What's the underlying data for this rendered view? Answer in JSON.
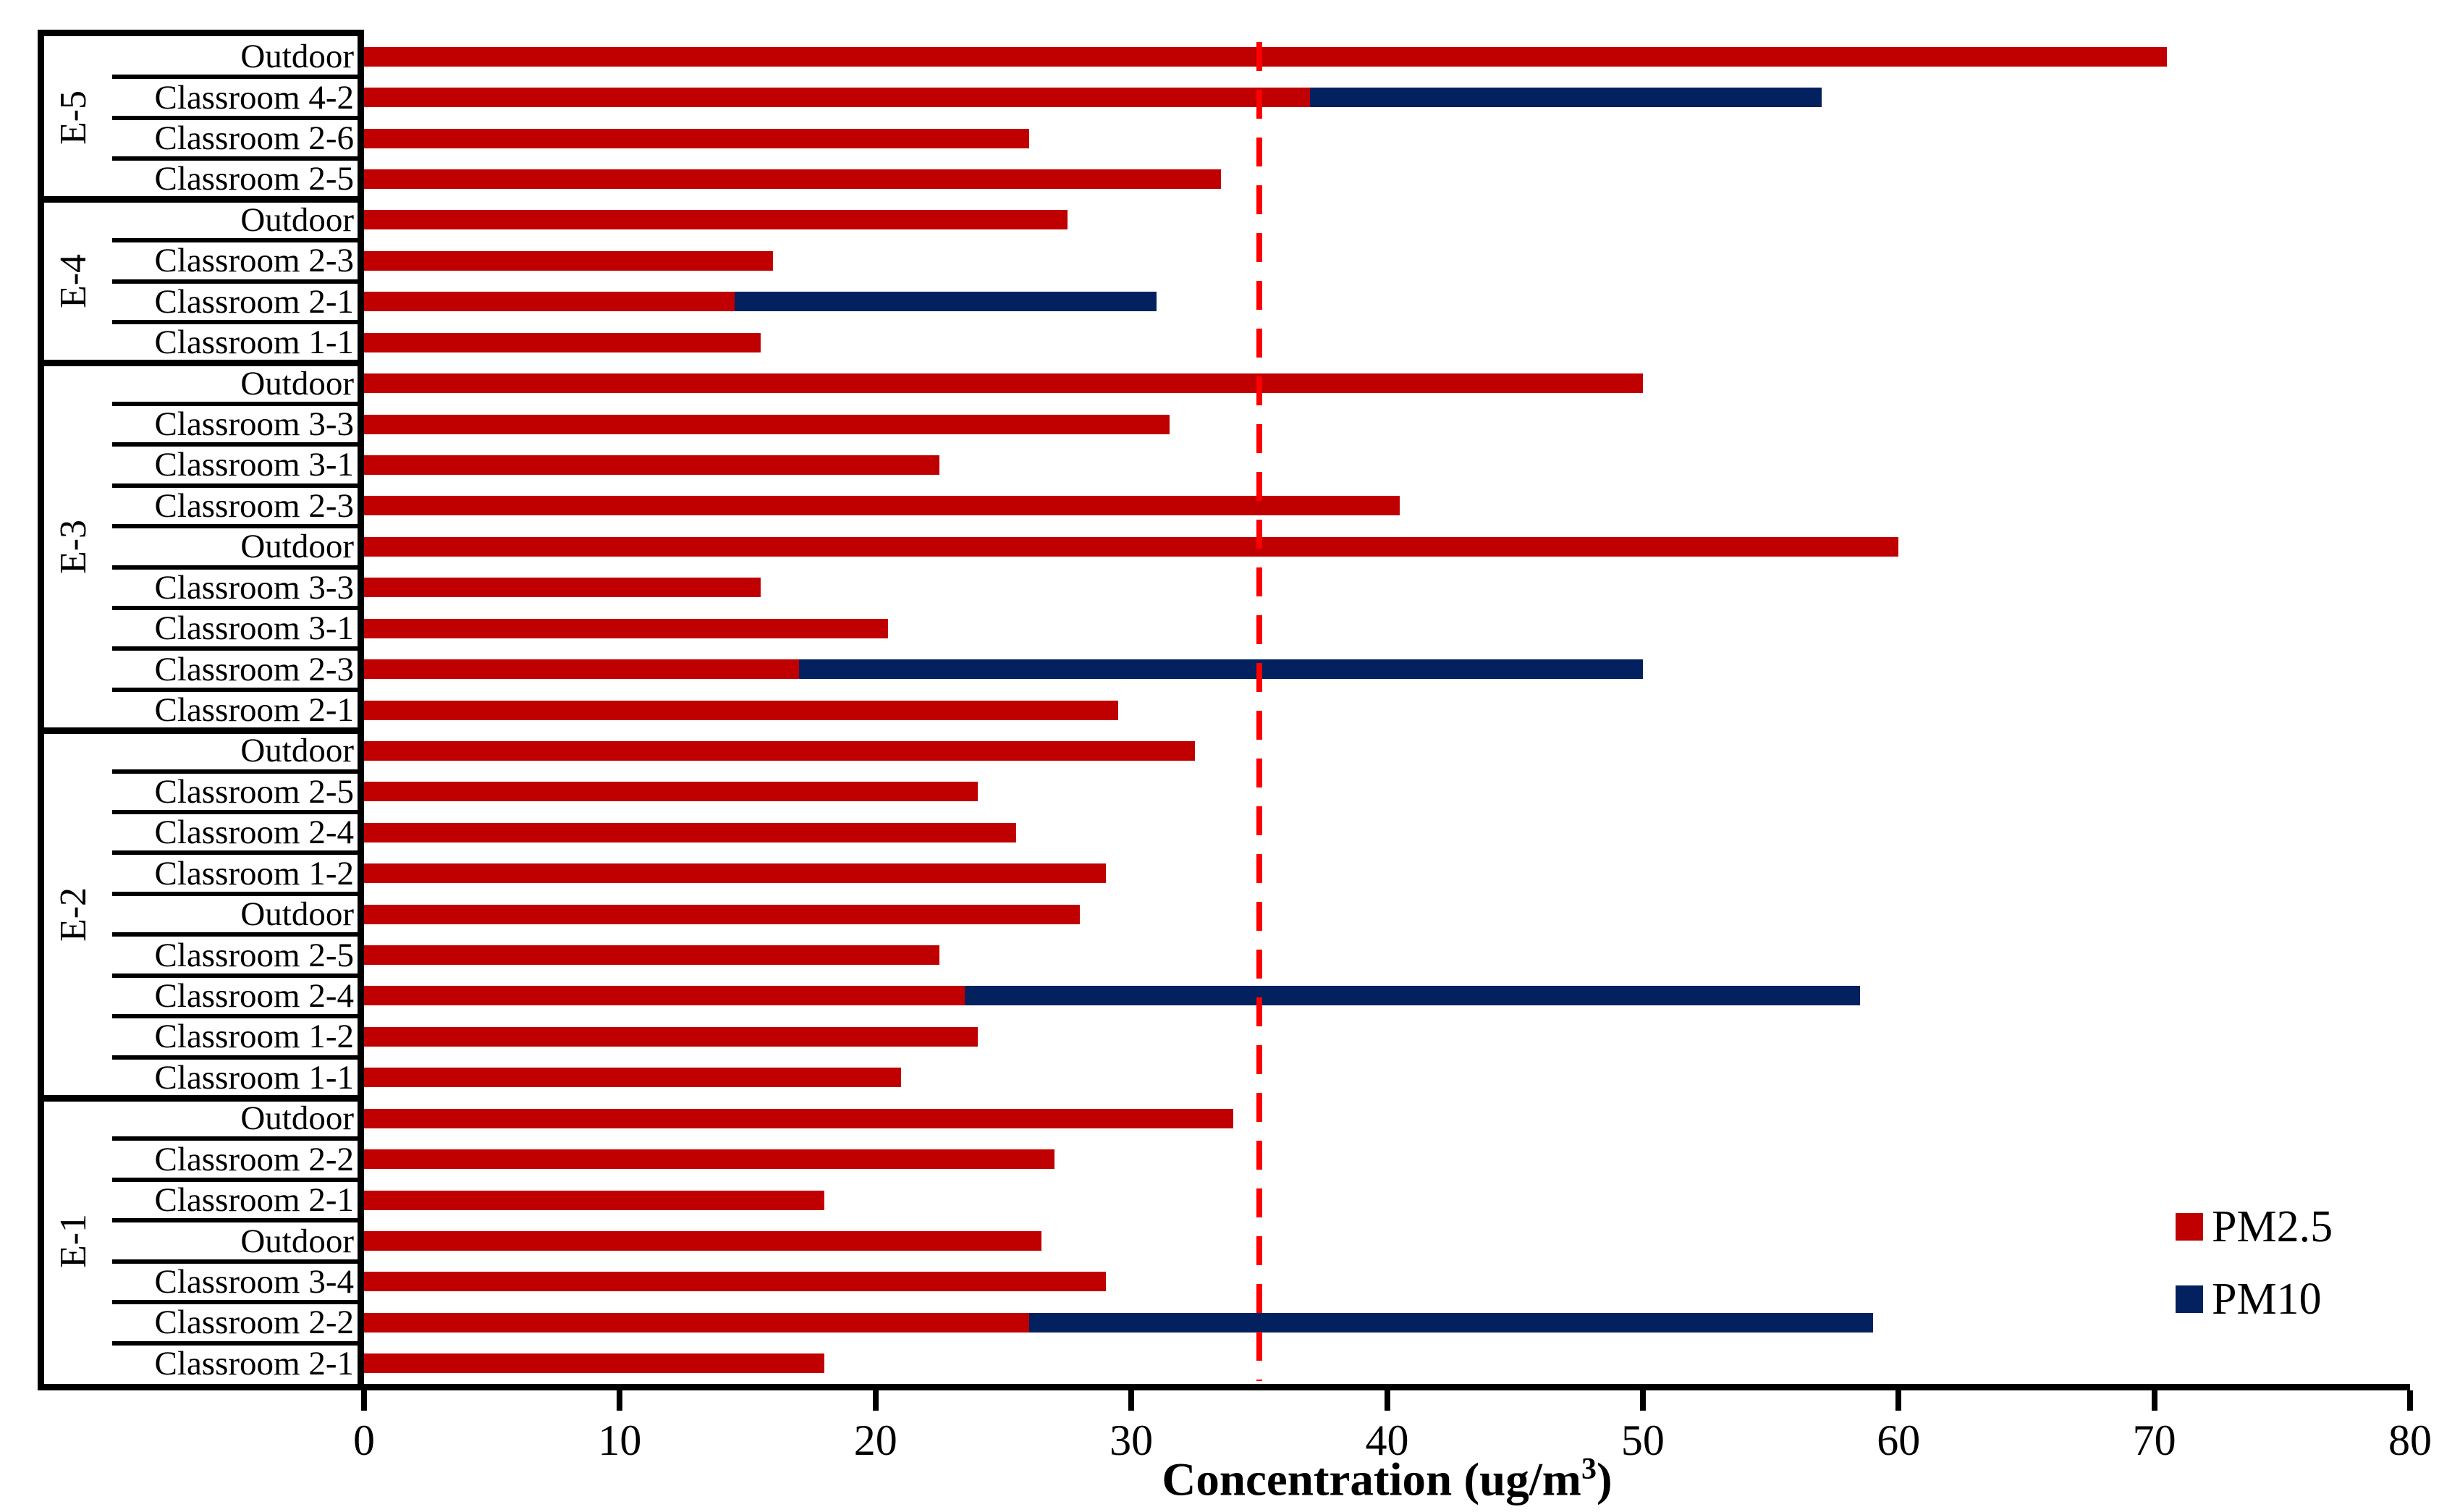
{
  "chart_data": {
    "type": "bar",
    "orientation": "horizontal",
    "xlabel": "Concentration (ug/m³)",
    "xlabel_prefix": "Concentration (ug/m",
    "xlabel_sup": "3",
    "xlabel_suffix": ")",
    "xlim": [
      0,
      80
    ],
    "x_ticks": [
      0,
      10,
      20,
      30,
      40,
      50,
      60,
      70,
      80
    ],
    "grid": "off",
    "legend_position": "lower right",
    "legend": [
      {
        "label": "PM2.5",
        "color": "#C00000"
      },
      {
        "label": "PM10",
        "color": "#03215F"
      }
    ],
    "guideline": {
      "value": 35,
      "style": "dashed",
      "color": "#FF0000"
    },
    "colors": {
      "pm25": "#C00000",
      "pm10": "#03215F",
      "axis": "#000000",
      "background": "#FFFFFF"
    },
    "groups": [
      {
        "name": "E-5",
        "rows": [
          {
            "label": "Outdoor",
            "pm25": 70.5
          },
          {
            "label": "Classroom 4-2",
            "pm25": 37,
            "pm10": 57
          },
          {
            "label": "Classroom 2-6",
            "pm25": 26
          },
          {
            "label": "Classroom 2-5",
            "pm25": 33.5
          }
        ]
      },
      {
        "name": "E-4",
        "rows": [
          {
            "label": "Outdoor",
            "pm25": 27.5
          },
          {
            "label": "Classroom 2-3",
            "pm25": 16
          },
          {
            "label": "Classroom 2-1",
            "pm25": 14.5,
            "pm10": 31
          },
          {
            "label": "Classroom 1-1",
            "pm25": 15.5
          }
        ]
      },
      {
        "name": "E-3",
        "rows": [
          {
            "label": "Outdoor",
            "pm25": 50
          },
          {
            "label": "Classroom 3-3",
            "pm25": 31.5
          },
          {
            "label": "Classroom 3-1",
            "pm25": 22.5
          },
          {
            "label": "Classroom 2-3",
            "pm25": 40.5
          },
          {
            "label": "Outdoor",
            "pm25": 60
          },
          {
            "label": "Classroom 3-3",
            "pm25": 15.5
          },
          {
            "label": "Classroom 3-1",
            "pm25": 20.5
          },
          {
            "label": "Classroom 2-3",
            "pm25": 17,
            "pm10": 50
          },
          {
            "label": "Classroom 2-1",
            "pm25": 29.5
          }
        ]
      },
      {
        "name": "E-2",
        "rows": [
          {
            "label": "Outdoor",
            "pm25": 32.5
          },
          {
            "label": "Classroom 2-5",
            "pm25": 24
          },
          {
            "label": "Classroom 2-4",
            "pm25": 25.5
          },
          {
            "label": "Classroom 1-2",
            "pm25": 29
          },
          {
            "label": "Outdoor",
            "pm25": 28
          },
          {
            "label": "Classroom 2-5",
            "pm25": 22.5
          },
          {
            "label": "Classroom 2-4",
            "pm25": 23.5,
            "pm10": 58.5
          },
          {
            "label": "Classroom 1-2",
            "pm25": 24
          },
          {
            "label": "Classroom 1-1",
            "pm25": 21
          }
        ]
      },
      {
        "name": "E-1",
        "rows": [
          {
            "label": "Outdoor",
            "pm25": 34
          },
          {
            "label": "Classroom 2-2",
            "pm25": 27
          },
          {
            "label": "Classroom 2-1",
            "pm25": 18
          },
          {
            "label": "Outdoor",
            "pm25": 26.5
          },
          {
            "label": "Classroom 3-4",
            "pm25": 29
          },
          {
            "label": "Classroom 2-2",
            "pm25": 26,
            "pm10": 59
          },
          {
            "label": "Classroom 2-1",
            "pm25": 18
          }
        ]
      }
    ]
  }
}
